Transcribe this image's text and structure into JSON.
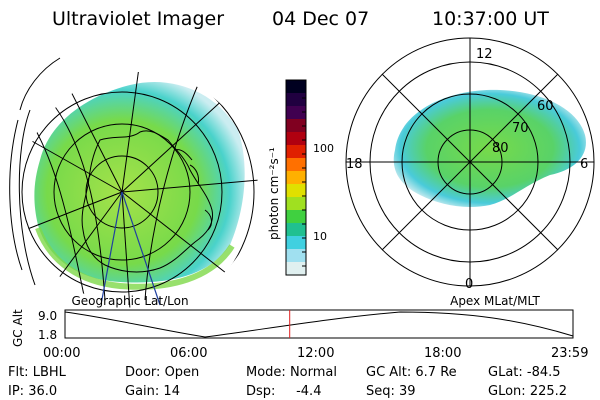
{
  "header": {
    "title": "Ultraviolet Imager",
    "date": "04 Dec 07",
    "time": "10:37:00 UT"
  },
  "left_panel": {
    "caption": "Geographic Lat/Lon"
  },
  "right_panel": {
    "caption": "Apex MLat/MLT",
    "mlt_labels": [
      "12",
      "18",
      "6",
      "0"
    ],
    "lat_labels": [
      "60",
      "70",
      "80"
    ]
  },
  "colorbar": {
    "unit": "photon cm⁻²s⁻¹",
    "ticks": [
      "100",
      "10"
    ],
    "colors": [
      "#000020",
      "#200040",
      "#400050",
      "#800020",
      "#b00010",
      "#e02000",
      "#ff7000",
      "#ffb000",
      "#e0e000",
      "#a0e020",
      "#40d040",
      "#20c090",
      "#40d0e0",
      "#a0e0f0",
      "#e0f0f0"
    ]
  },
  "altitude_plot": {
    "ylabel": "GC Alt",
    "yticks": [
      "9.0",
      "1.8"
    ],
    "xticks": [
      "00:00",
      "06:00",
      "12:00",
      "18:00",
      "23:59"
    ],
    "current_time_hours": 10.617
  },
  "info": {
    "row1": [
      {
        "label": "Flt:",
        "value": "LBHL"
      },
      {
        "label": "Door:",
        "value": "Open"
      },
      {
        "label": "Mode:",
        "value": "Normal"
      },
      {
        "label": "GC Alt:",
        "value": "6.7 Re"
      },
      {
        "label": "GLat:",
        "value": "-84.5"
      }
    ],
    "row2": [
      {
        "label": "IP:",
        "value": "36.0"
      },
      {
        "label": "Gain:",
        "value": "14"
      },
      {
        "label": "Dsp:",
        "value": "-4.4"
      },
      {
        "label": "Seq:",
        "value": "39"
      },
      {
        "label": "GLon:",
        "value": "225.2"
      }
    ]
  },
  "colors": {
    "red_marker": "#e02020"
  }
}
